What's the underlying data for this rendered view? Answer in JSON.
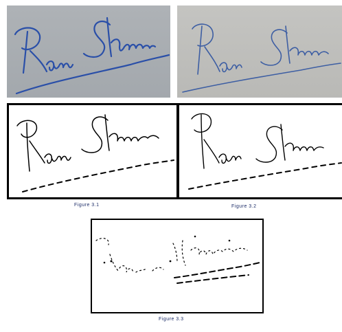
{
  "figure": {
    "signature_text": "Ram Sharma",
    "captions": {
      "caption_1": "Figure 3.1",
      "caption_2": "Figure 3.2",
      "caption_3": "Figure 3.3"
    },
    "colors": {
      "ink": "#2a4fa8",
      "ink_faint": "#3d5ea3",
      "paper_1": "#a9adb1",
      "paper_2": "#bfbfbc",
      "binary_ink": "#000000",
      "caption": "#1a2a66"
    }
  }
}
